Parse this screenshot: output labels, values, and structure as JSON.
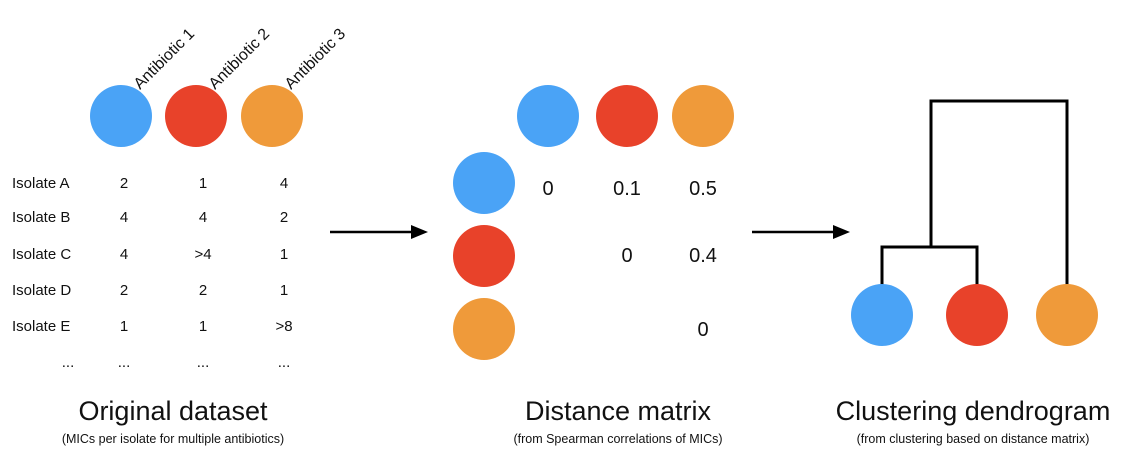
{
  "colors": {
    "antibiotic_1": "#4aa3f6",
    "antibiotic_2": "#e8422a",
    "antibiotic_3": "#ef9a3a"
  },
  "icons": {
    "antibiotic_1": "circle-icon",
    "antibiotic_2": "circle-icon",
    "antibiotic_3": "circle-icon",
    "arrow": "arrow-right-icon"
  },
  "original_dataset": {
    "antibiotics": [
      "Antibiotic 1",
      "Antibiotic 2",
      "Antibiotic 3"
    ],
    "rows": [
      {
        "isolate": "Isolate A",
        "values": [
          "2",
          "1",
          "4"
        ]
      },
      {
        "isolate": "Isolate B",
        "values": [
          "4",
          "4",
          "2"
        ]
      },
      {
        "isolate": "Isolate C",
        "values": [
          "4",
          ">4",
          "1"
        ]
      },
      {
        "isolate": "Isolate D",
        "values": [
          "2",
          "2",
          "1"
        ]
      },
      {
        "isolate": "Isolate E",
        "values": [
          "1",
          "1",
          ">8"
        ]
      }
    ],
    "ellipsis": "...",
    "title": "Original dataset",
    "subtitle": "(MICs per isolate for multiple antibiotics)"
  },
  "distance_matrix": {
    "values": [
      [
        "0",
        "0.1",
        "0.5"
      ],
      [
        "",
        "0",
        "0.4"
      ],
      [
        "",
        "",
        "0"
      ]
    ],
    "title": "Distance matrix",
    "subtitle": "(from Spearman correlations of MICs)"
  },
  "dendrogram": {
    "leaf_order": [
      "antibiotic_1",
      "antibiotic_2",
      "antibiotic_3"
    ],
    "title": "Clustering dendrogram",
    "subtitle": "(from clustering based on distance matrix)"
  }
}
